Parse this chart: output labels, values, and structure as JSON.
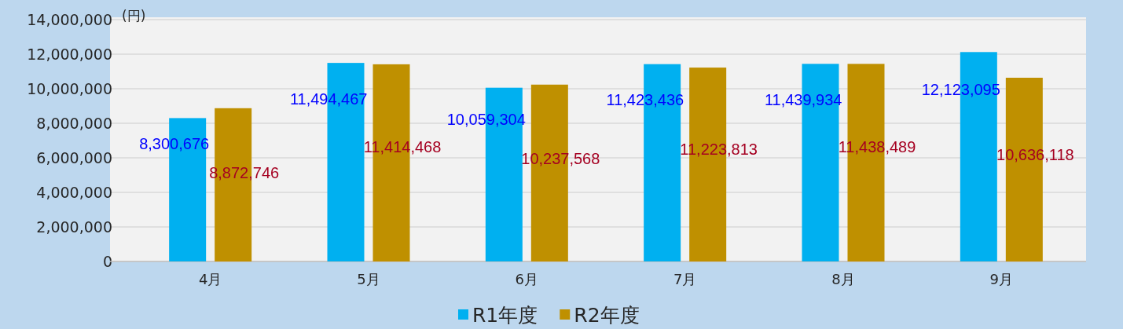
{
  "chart_data": {
    "type": "bar",
    "ylabel": "(円)",
    "categories": [
      "4月",
      "5月",
      "6月",
      "7月",
      "8月",
      "9月"
    ],
    "series": [
      {
        "name": "R1年度",
        "color": "#00b0f0",
        "values": [
          8300676,
          11494467,
          10059304,
          11423436,
          11439934,
          12123095
        ],
        "value_labels": [
          "8,300,676",
          "11,494,467",
          "10,059,304",
          "11,423,436",
          "11,439,934",
          "12,123,095"
        ]
      },
      {
        "name": "R2年度",
        "color": "#bf9000",
        "values": [
          8872746,
          11414468,
          10237568,
          11223813,
          11438489,
          10636118
        ],
        "value_labels": [
          "8,872,746",
          "11,414,468",
          "10,237,568",
          "11,223,813",
          "11,438,489",
          "10,636,118"
        ]
      }
    ],
    "ylim": [
      0,
      14000000
    ],
    "yticks": [
      {
        "value": 0,
        "label": "0"
      },
      {
        "value": 2000000,
        "label": "2,000,000"
      },
      {
        "value": 4000000,
        "label": "4,000,000"
      },
      {
        "value": 6000000,
        "label": "6,000,000"
      },
      {
        "value": 8000000,
        "label": "8,000,000"
      },
      {
        "value": 10000000,
        "label": "10,000,000"
      },
      {
        "value": 12000000,
        "label": "12,000,000"
      },
      {
        "value": 14000000,
        "label": "14,000,000"
      }
    ],
    "grid": "y",
    "legend": "bottom"
  }
}
